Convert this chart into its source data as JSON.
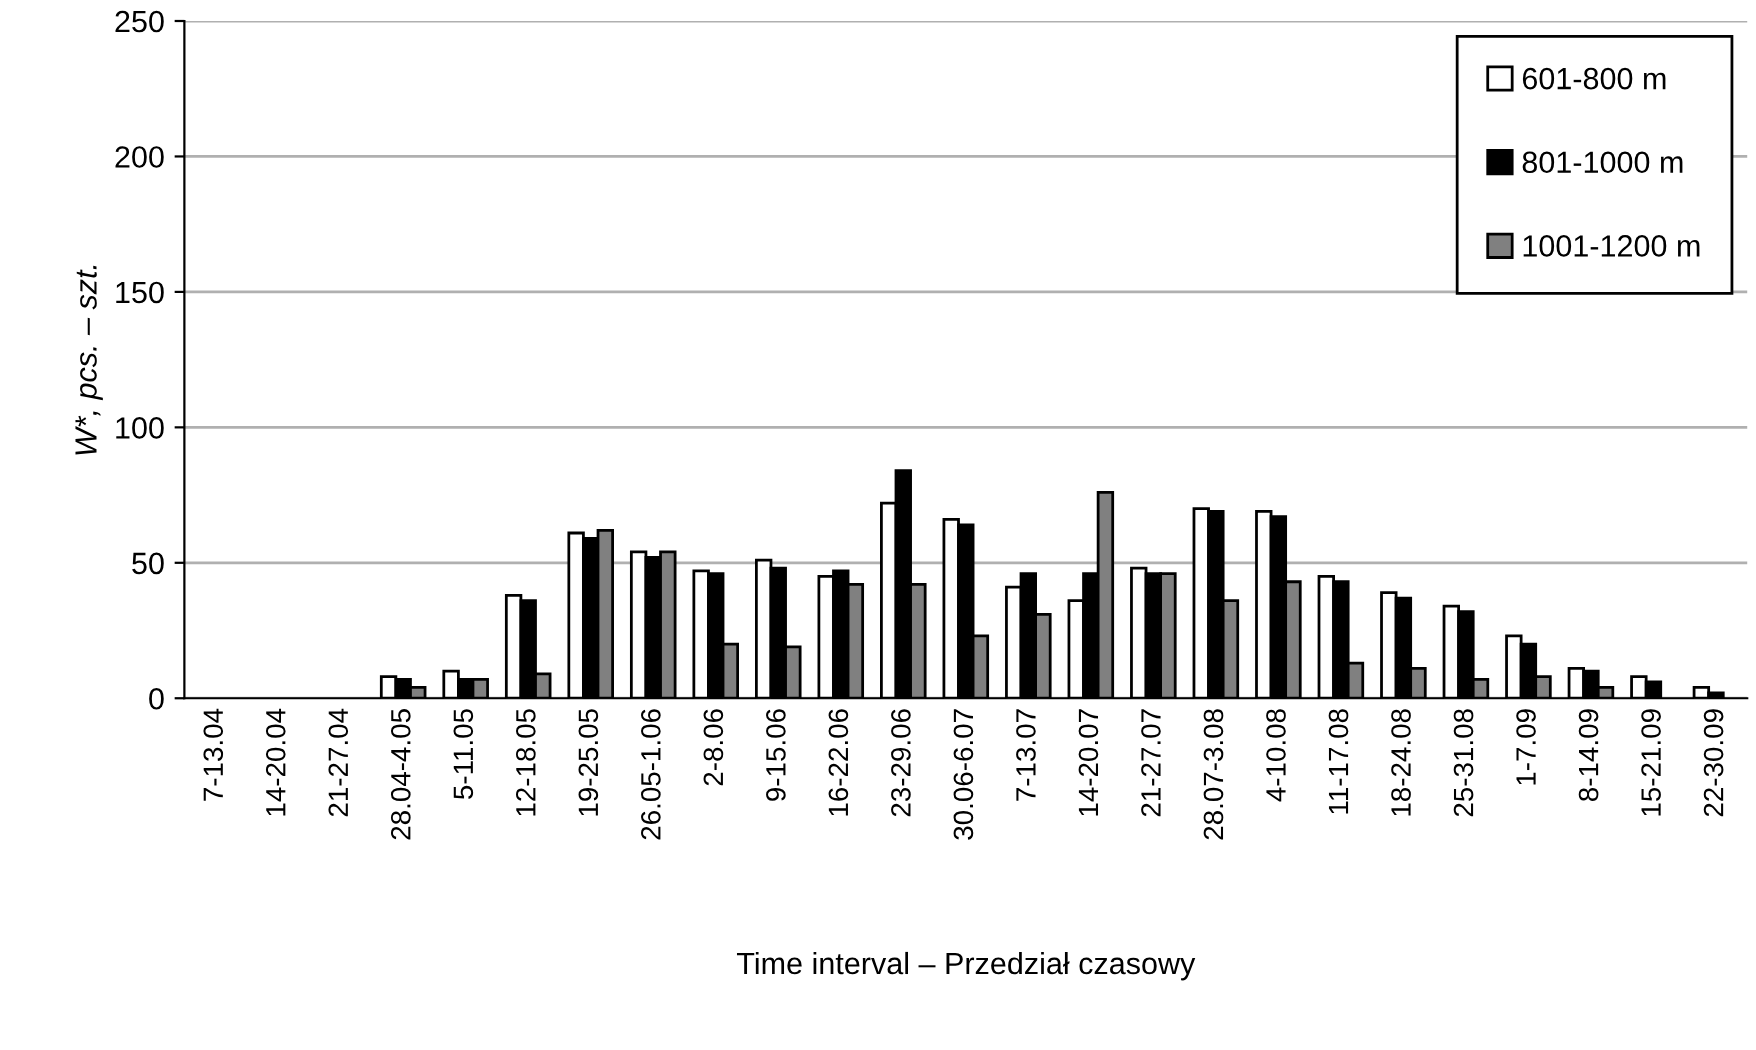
{
  "chart_data": {
    "type": "bar",
    "xlabel": "Time interval – Przedział czasowy",
    "ylabel": "W*, pcs. – szt.",
    "categories": [
      "7-13.04",
      "14-20.04",
      "21-27.04",
      "28.04-4.05",
      "5-11.05",
      "12-18.05",
      "19-25.05",
      "26.05-1.06",
      "2-8.06",
      "9-15.06",
      "16-22.06",
      "23-29.06",
      "30.06-6.07",
      "7-13.07",
      "14-20.07",
      "21-27.07",
      "28.07-3.08",
      "4-10.08",
      "11-17.08",
      "18-24.08",
      "25-31.08",
      "1-7.09",
      "8-14.09",
      "15-21.09",
      "22-30.09"
    ],
    "series": [
      {
        "name": "601-800 m",
        "color": "#ffffff",
        "values": [
          null,
          null,
          null,
          8,
          10,
          38,
          61,
          54,
          47,
          51,
          45,
          72,
          66,
          41,
          36,
          48,
          70,
          69,
          45,
          39,
          34,
          23,
          11,
          8,
          4
        ]
      },
      {
        "name": "801-1000 m",
        "color": "#000000",
        "values": [
          null,
          null,
          null,
          7,
          7,
          36,
          59,
          52,
          46,
          48,
          47,
          84,
          64,
          46,
          46,
          46,
          69,
          67,
          43,
          37,
          32,
          20,
          10,
          6,
          2
        ]
      },
      {
        "name": "1001-1200 m",
        "color": "#808080",
        "values": [
          null,
          null,
          null,
          4,
          7,
          9,
          62,
          54,
          20,
          19,
          42,
          42,
          23,
          31,
          76,
          46,
          36,
          43,
          13,
          11,
          7,
          8,
          4,
          null,
          null
        ]
      }
    ],
    "ylim": [
      0,
      250
    ],
    "yticks": [
      0,
      50,
      100,
      150,
      200,
      250
    ],
    "grid": "y",
    "legend": "top right"
  }
}
